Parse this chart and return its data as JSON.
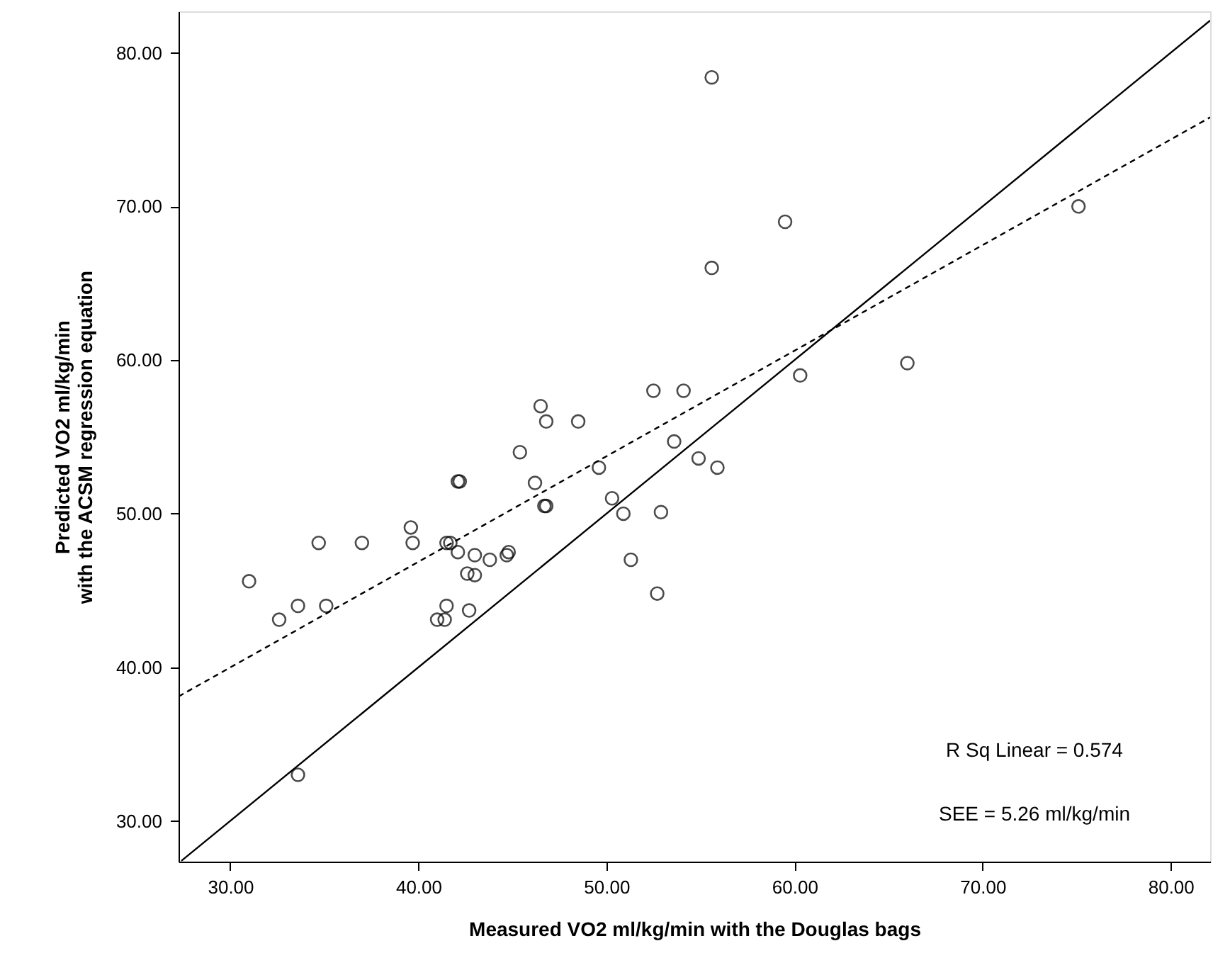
{
  "chart_data": {
    "type": "scatter",
    "xlabel": "Measured VO2 ml/kg/min with the Douglas bags",
    "ylabel": "Predicted VO2 ml/kg/min\nwith the ACSM regression equation",
    "xlim": [
      27.25,
      82.1
    ],
    "ylim": [
      27.35,
      82.7
    ],
    "xticks": [
      {
        "value": 30,
        "label": "30.00"
      },
      {
        "value": 40,
        "label": "40.00"
      },
      {
        "value": 50,
        "label": "50.00"
      },
      {
        "value": 60,
        "label": "60.00"
      },
      {
        "value": 70,
        "label": "70.00"
      },
      {
        "value": 80,
        "label": "80.00"
      }
    ],
    "yticks": [
      {
        "value": 30,
        "label": "30.00"
      },
      {
        "value": 40,
        "label": "40.00"
      },
      {
        "value": 50,
        "label": "50.00"
      },
      {
        "value": 60,
        "label": "60.00"
      },
      {
        "value": 70,
        "label": "70.00"
      },
      {
        "value": 80,
        "label": "80.00"
      }
    ],
    "grid": false,
    "marker": "circle",
    "series": [
      {
        "color": "#000000",
        "x": [
          55.6,
          59.5,
          55.6,
          75.1,
          66.0,
          60.3,
          52.5,
          54.1,
          46.5,
          46.8,
          48.5,
          45.4,
          53.6,
          54.9,
          55.9,
          49.6,
          46.2,
          42.1,
          42.2,
          50.3,
          50.9,
          52.9,
          46.7,
          46.8,
          51.3,
          52.7,
          39.6,
          39.7,
          34.7,
          37.0,
          41.5,
          41.7,
          42.1,
          43.0,
          43.8,
          44.7,
          44.8,
          42.6,
          43.0,
          41.5,
          42.7,
          41.0,
          41.4,
          31.0,
          32.6,
          33.6,
          35.1,
          33.6
        ],
        "values": [
          78.4,
          69.0,
          66.0,
          70.0,
          59.8,
          59.0,
          58.0,
          58.0,
          57.0,
          56.0,
          56.0,
          54.0,
          54.7,
          53.6,
          53.0,
          53.0,
          52.0,
          52.1,
          52.1,
          51.0,
          50.0,
          50.1,
          50.5,
          50.5,
          47.0,
          44.8,
          49.1,
          48.1,
          48.1,
          48.1,
          48.1,
          48.1,
          47.5,
          47.3,
          47.0,
          47.3,
          47.5,
          46.1,
          46.0,
          44.0,
          43.7,
          43.1,
          43.1,
          45.6,
          43.1,
          44.0,
          44.0,
          33.0
        ]
      },
      {
        "type": "line",
        "color": "#000000",
        "marker": "none",
        "line_style": "dashed",
        "x": [
          27.25,
          82.1
        ],
        "values": [
          38.1,
          75.8
        ]
      },
      {
        "type": "line",
        "color": "#000000",
        "marker": "none",
        "line_style": "solid",
        "x": [
          27.4,
          82.1
        ],
        "values": [
          27.4,
          82.1
        ]
      }
    ],
    "annotations": [
      "R Sq Linear = 0.574",
      "SEE = 5.26 ml/kg/min"
    ]
  }
}
